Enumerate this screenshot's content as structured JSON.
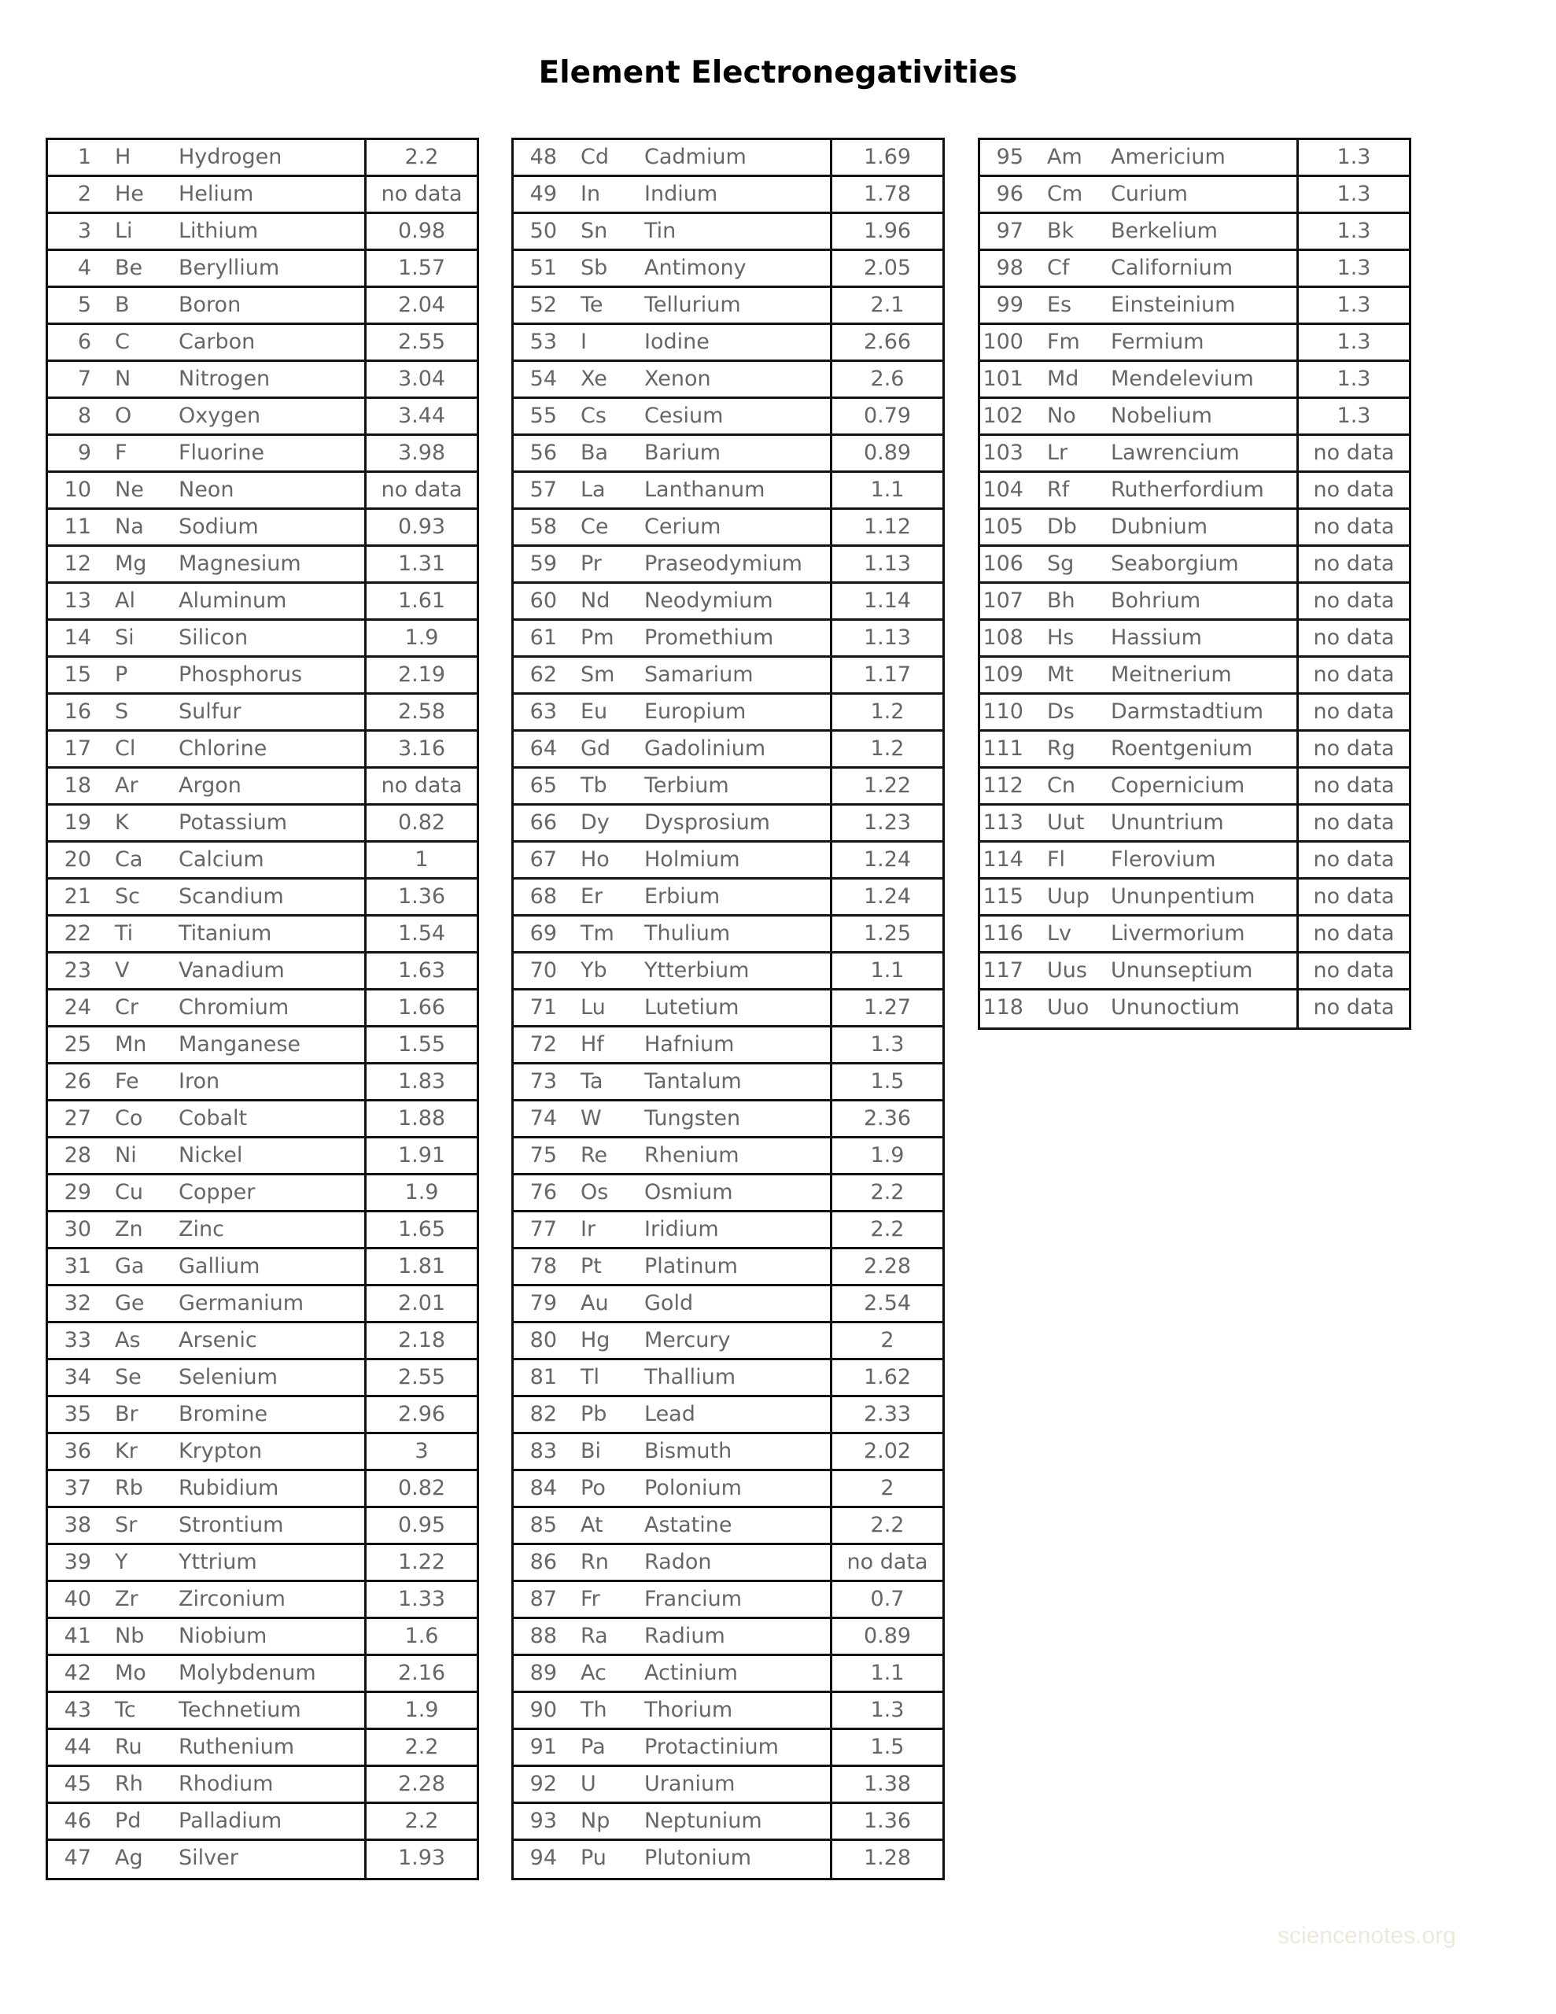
{
  "title": "Element Electronegativities",
  "watermark": "sciencenotes.org",
  "tables": [
    {
      "rows": [
        [
          "1",
          "H",
          "Hydrogen",
          "2.2"
        ],
        [
          "2",
          "He",
          "Helium",
          "no data"
        ],
        [
          "3",
          "Li",
          "Lithium",
          "0.98"
        ],
        [
          "4",
          "Be",
          "Beryllium",
          "1.57"
        ],
        [
          "5",
          "B",
          "Boron",
          "2.04"
        ],
        [
          "6",
          "C",
          "Carbon",
          "2.55"
        ],
        [
          "7",
          "N",
          "Nitrogen",
          "3.04"
        ],
        [
          "8",
          "O",
          "Oxygen",
          "3.44"
        ],
        [
          "9",
          "F",
          "Fluorine",
          "3.98"
        ],
        [
          "10",
          "Ne",
          "Neon",
          "no data"
        ],
        [
          "11",
          "Na",
          "Sodium",
          "0.93"
        ],
        [
          "12",
          "Mg",
          "Magnesium",
          "1.31"
        ],
        [
          "13",
          "Al",
          "Aluminum",
          "1.61"
        ],
        [
          "14",
          "Si",
          "Silicon",
          "1.9"
        ],
        [
          "15",
          "P",
          "Phosphorus",
          "2.19"
        ],
        [
          "16",
          "S",
          "Sulfur",
          "2.58"
        ],
        [
          "17",
          "Cl",
          "Chlorine",
          "3.16"
        ],
        [
          "18",
          "Ar",
          "Argon",
          "no data"
        ],
        [
          "19",
          "K",
          "Potassium",
          "0.82"
        ],
        [
          "20",
          "Ca",
          "Calcium",
          "1"
        ],
        [
          "21",
          "Sc",
          "Scandium",
          "1.36"
        ],
        [
          "22",
          "Ti",
          "Titanium",
          "1.54"
        ],
        [
          "23",
          "V",
          "Vanadium",
          "1.63"
        ],
        [
          "24",
          "Cr",
          "Chromium",
          "1.66"
        ],
        [
          "25",
          "Mn",
          "Manganese",
          "1.55"
        ],
        [
          "26",
          "Fe",
          "Iron",
          "1.83"
        ],
        [
          "27",
          "Co",
          "Cobalt",
          "1.88"
        ],
        [
          "28",
          "Ni",
          "Nickel",
          "1.91"
        ],
        [
          "29",
          "Cu",
          "Copper",
          "1.9"
        ],
        [
          "30",
          "Zn",
          "Zinc",
          "1.65"
        ],
        [
          "31",
          "Ga",
          "Gallium",
          "1.81"
        ],
        [
          "32",
          "Ge",
          "Germanium",
          "2.01"
        ],
        [
          "33",
          "As",
          "Arsenic",
          "2.18"
        ],
        [
          "34",
          "Se",
          "Selenium",
          "2.55"
        ],
        [
          "35",
          "Br",
          "Bromine",
          "2.96"
        ],
        [
          "36",
          "Kr",
          "Krypton",
          "3"
        ],
        [
          "37",
          "Rb",
          "Rubidium",
          "0.82"
        ],
        [
          "38",
          "Sr",
          "Strontium",
          "0.95"
        ],
        [
          "39",
          "Y",
          "Yttrium",
          "1.22"
        ],
        [
          "40",
          "Zr",
          "Zirconium",
          "1.33"
        ],
        [
          "41",
          "Nb",
          "Niobium",
          "1.6"
        ],
        [
          "42",
          "Mo",
          "Molybdenum",
          "2.16"
        ],
        [
          "43",
          "Tc",
          "Technetium",
          "1.9"
        ],
        [
          "44",
          "Ru",
          "Ruthenium",
          "2.2"
        ],
        [
          "45",
          "Rh",
          "Rhodium",
          "2.28"
        ],
        [
          "46",
          "Pd",
          "Palladium",
          "2.2"
        ],
        [
          "47",
          "Ag",
          "Silver",
          "1.93"
        ]
      ]
    },
    {
      "rows": [
        [
          "48",
          "Cd",
          "Cadmium",
          "1.69"
        ],
        [
          "49",
          "In",
          "Indium",
          "1.78"
        ],
        [
          "50",
          "Sn",
          "Tin",
          "1.96"
        ],
        [
          "51",
          "Sb",
          "Antimony",
          "2.05"
        ],
        [
          "52",
          "Te",
          "Tellurium",
          "2.1"
        ],
        [
          "53",
          "I",
          "Iodine",
          "2.66"
        ],
        [
          "54",
          "Xe",
          "Xenon",
          "2.6"
        ],
        [
          "55",
          "Cs",
          "Cesium",
          "0.79"
        ],
        [
          "56",
          "Ba",
          "Barium",
          "0.89"
        ],
        [
          "57",
          "La",
          "Lanthanum",
          "1.1"
        ],
        [
          "58",
          "Ce",
          "Cerium",
          "1.12"
        ],
        [
          "59",
          "Pr",
          "Praseodymium",
          "1.13"
        ],
        [
          "60",
          "Nd",
          "Neodymium",
          "1.14"
        ],
        [
          "61",
          "Pm",
          "Promethium",
          "1.13"
        ],
        [
          "62",
          "Sm",
          "Samarium",
          "1.17"
        ],
        [
          "63",
          "Eu",
          "Europium",
          "1.2"
        ],
        [
          "64",
          "Gd",
          "Gadolinium",
          "1.2"
        ],
        [
          "65",
          "Tb",
          "Terbium",
          "1.22"
        ],
        [
          "66",
          "Dy",
          "Dysprosium",
          "1.23"
        ],
        [
          "67",
          "Ho",
          "Holmium",
          "1.24"
        ],
        [
          "68",
          "Er",
          "Erbium",
          "1.24"
        ],
        [
          "69",
          "Tm",
          "Thulium",
          "1.25"
        ],
        [
          "70",
          "Yb",
          "Ytterbium",
          "1.1"
        ],
        [
          "71",
          "Lu",
          "Lutetium",
          "1.27"
        ],
        [
          "72",
          "Hf",
          "Hafnium",
          "1.3"
        ],
        [
          "73",
          "Ta",
          "Tantalum",
          "1.5"
        ],
        [
          "74",
          "W",
          "Tungsten",
          "2.36"
        ],
        [
          "75",
          "Re",
          "Rhenium",
          "1.9"
        ],
        [
          "76",
          "Os",
          "Osmium",
          "2.2"
        ],
        [
          "77",
          "Ir",
          "Iridium",
          "2.2"
        ],
        [
          "78",
          "Pt",
          "Platinum",
          "2.28"
        ],
        [
          "79",
          "Au",
          "Gold",
          "2.54"
        ],
        [
          "80",
          "Hg",
          "Mercury",
          "2"
        ],
        [
          "81",
          "Tl",
          "Thallium",
          "1.62"
        ],
        [
          "82",
          "Pb",
          "Lead",
          "2.33"
        ],
        [
          "83",
          "Bi",
          "Bismuth",
          "2.02"
        ],
        [
          "84",
          "Po",
          "Polonium",
          "2"
        ],
        [
          "85",
          "At",
          "Astatine",
          "2.2"
        ],
        [
          "86",
          "Rn",
          "Radon",
          "no data"
        ],
        [
          "87",
          "Fr",
          "Francium",
          "0.7"
        ],
        [
          "88",
          "Ra",
          "Radium",
          "0.89"
        ],
        [
          "89",
          "Ac",
          "Actinium",
          "1.1"
        ],
        [
          "90",
          "Th",
          "Thorium",
          "1.3"
        ],
        [
          "91",
          "Pa",
          "Protactinium",
          "1.5"
        ],
        [
          "92",
          "U",
          "Uranium",
          "1.38"
        ],
        [
          "93",
          "Np",
          "Neptunium",
          "1.36"
        ],
        [
          "94",
          "Pu",
          "Plutonium",
          "1.28"
        ]
      ]
    },
    {
      "rows": [
        [
          "95",
          "Am",
          "Americium",
          "1.3"
        ],
        [
          "96",
          "Cm",
          "Curium",
          "1.3"
        ],
        [
          "97",
          "Bk",
          "Berkelium",
          "1.3"
        ],
        [
          "98",
          "Cf",
          "Californium",
          "1.3"
        ],
        [
          "99",
          "Es",
          "Einsteinium",
          "1.3"
        ],
        [
          "100",
          "Fm",
          "Fermium",
          "1.3"
        ],
        [
          "101",
          "Md",
          "Mendelevium",
          "1.3"
        ],
        [
          "102",
          "No",
          "Nobelium",
          "1.3"
        ],
        [
          "103",
          "Lr",
          "Lawrencium",
          "no data"
        ],
        [
          "104",
          "Rf",
          "Rutherfordium",
          "no data"
        ],
        [
          "105",
          "Db",
          "Dubnium",
          "no data"
        ],
        [
          "106",
          "Sg",
          "Seaborgium",
          "no data"
        ],
        [
          "107",
          "Bh",
          "Bohrium",
          "no data"
        ],
        [
          "108",
          "Hs",
          "Hassium",
          "no data"
        ],
        [
          "109",
          "Mt",
          "Meitnerium",
          "no data"
        ],
        [
          "110",
          "Ds",
          "Darmstadtium",
          "no data"
        ],
        [
          "111",
          "Rg",
          "Roentgenium",
          "no data"
        ],
        [
          "112",
          "Cn",
          "Copernicium",
          "no data"
        ],
        [
          "113",
          "Uut",
          "Ununtrium",
          "no data"
        ],
        [
          "114",
          "Fl",
          "Flerovium",
          "no data"
        ],
        [
          "115",
          "Uup",
          "Ununpentium",
          "no data"
        ],
        [
          "116",
          "Lv",
          "Livermorium",
          "no data"
        ],
        [
          "117",
          "Uus",
          "Ununseptium",
          "no data"
        ],
        [
          "118",
          "Uuo",
          "Ununoctium",
          "no data"
        ]
      ]
    }
  ]
}
